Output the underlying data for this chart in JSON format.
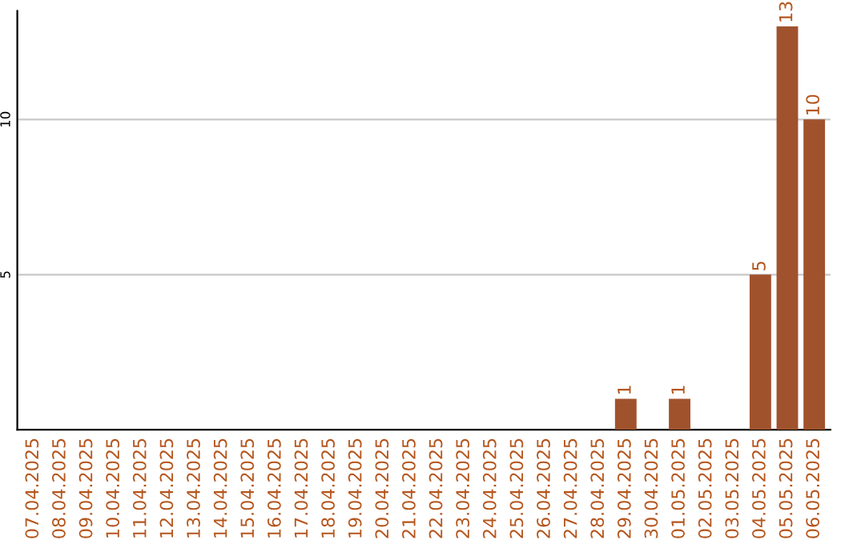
{
  "chart_data": {
    "type": "bar",
    "categories": [
      "07.04.2025",
      "08.04.2025",
      "09.04.2025",
      "10.04.2025",
      "11.04.2025",
      "12.04.2025",
      "13.04.2025",
      "14.04.2025",
      "15.04.2025",
      "16.04.2025",
      "17.04.2025",
      "18.04.2025",
      "19.04.2025",
      "20.04.2025",
      "21.04.2025",
      "22.04.2025",
      "23.04.2025",
      "24.04.2025",
      "25.04.2025",
      "26.04.2025",
      "27.04.2025",
      "28.04.2025",
      "29.04.2025",
      "30.04.2025",
      "01.05.2025",
      "02.05.2025",
      "03.05.2025",
      "04.05.2025",
      "05.05.2025",
      "06.05.2025"
    ],
    "values": [
      0,
      0,
      0,
      0,
      0,
      0,
      0,
      0,
      0,
      0,
      0,
      0,
      0,
      0,
      0,
      0,
      0,
      0,
      0,
      0,
      0,
      0,
      1,
      0,
      1,
      0,
      0,
      5,
      13,
      10
    ],
    "value_labels": [
      null,
      null,
      null,
      null,
      null,
      null,
      null,
      null,
      null,
      null,
      null,
      null,
      null,
      null,
      null,
      null,
      null,
      null,
      null,
      null,
      null,
      null,
      "1",
      null,
      "1",
      null,
      null,
      "5",
      "13",
      "10"
    ],
    "color": "#a0522d",
    "ylim": [
      0,
      13.5
    ],
    "yticks": [
      5,
      10
    ],
    "grid": "y"
  }
}
